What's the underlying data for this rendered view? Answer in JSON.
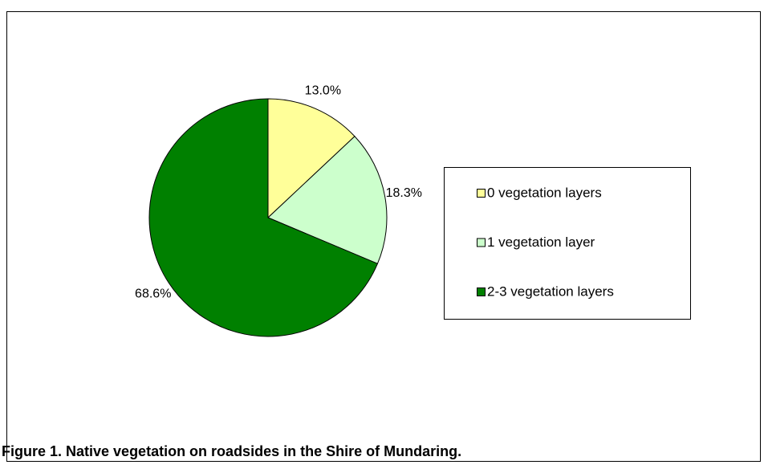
{
  "chart_data": {
    "type": "pie",
    "categories": [
      "0 vegetation layers",
      "1 vegetation layer",
      "2-3 vegetation layers"
    ],
    "values": [
      13.0,
      18.3,
      68.6
    ],
    "value_labels": [
      "13.0%",
      "18.3%",
      "68.6%"
    ],
    "colors": [
      "#ffff99",
      "#ccffcc",
      "#008000"
    ],
    "legend": "right",
    "caption": "Figure 1. Native vegetation on roadsides in the Shire of Mundaring."
  }
}
